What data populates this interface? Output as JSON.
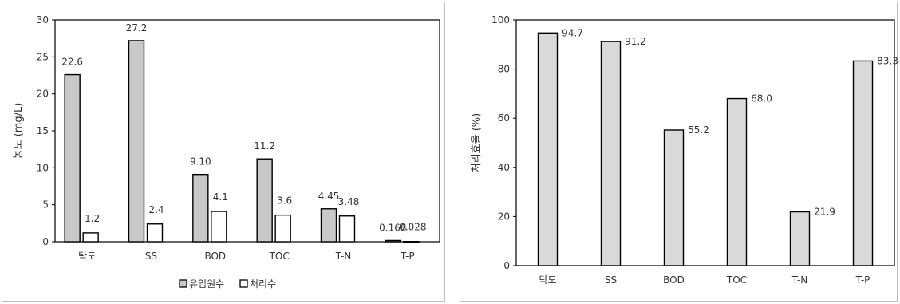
{
  "chart_data": [
    {
      "type": "bar",
      "categories": [
        "탁도",
        "SS",
        "BOD",
        "TOC",
        "T-N",
        "T-P"
      ],
      "series": [
        {
          "name": "유입원수",
          "values": [
            22.6,
            27.2,
            9.1,
            11.2,
            4.45,
            0.168
          ],
          "labels": [
            "22.6",
            "27.2",
            "9.10",
            "11.2",
            "4.45",
            "0.168"
          ],
          "color": "#c8c8c8"
        },
        {
          "name": "처리수",
          "values": [
            1.2,
            2.4,
            4.1,
            3.6,
            3.48,
            0.028
          ],
          "labels": [
            "1.2",
            "2.4",
            "4.1",
            "3.6",
            "3.48",
            "0.028"
          ],
          "color": "#ffffff"
        }
      ],
      "ylabel": "농도 (mg/L)",
      "ylim": [
        0,
        30
      ],
      "yticks": [
        "0",
        "5",
        "10",
        "15",
        "20",
        "25",
        "30"
      ],
      "grid": false,
      "legend": "bottom"
    },
    {
      "type": "bar",
      "categories": [
        "탁도",
        "SS",
        "BOD",
        "TOC",
        "T-N",
        "T-P"
      ],
      "series": [
        {
          "values": [
            94.7,
            91.2,
            55.2,
            68.0,
            21.9,
            83.3
          ],
          "labels": [
            "94.7",
            "91.2",
            "55.2",
            "68.0",
            "21.9",
            "83.3"
          ],
          "color": "#d9d9d9"
        }
      ],
      "ylabel": "처리효율 (%)",
      "ylim": [
        0,
        100
      ],
      "yticks": [
        "0",
        "20",
        "40",
        "60",
        "80",
        "100"
      ],
      "grid": false
    }
  ]
}
